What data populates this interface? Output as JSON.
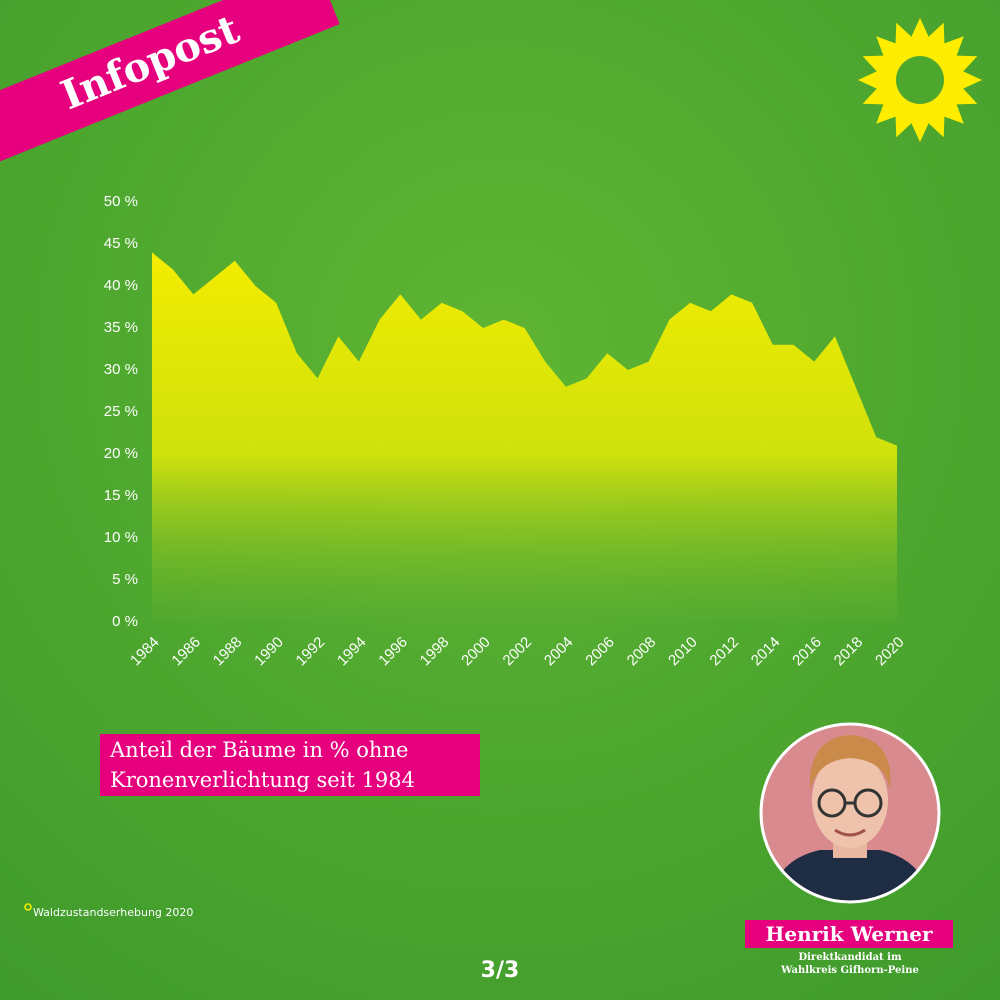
{
  "badge": "Infopost",
  "chart_data": {
    "type": "area",
    "title": "Anteil der Bäume in % ohne Kronenverlichtung seit 1984",
    "x": [
      1984,
      1985,
      1986,
      1987,
      1988,
      1989,
      1990,
      1991,
      1992,
      1993,
      1994,
      1995,
      1996,
      1997,
      1998,
      1999,
      2000,
      2001,
      2002,
      2003,
      2004,
      2005,
      2006,
      2007,
      2008,
      2009,
      2010,
      2011,
      2012,
      2013,
      2014,
      2015,
      2016,
      2017,
      2018,
      2019,
      2020
    ],
    "values": [
      44,
      42,
      39,
      41,
      43,
      40,
      38,
      32,
      29,
      34,
      31,
      36,
      39,
      36,
      38,
      37,
      35,
      36,
      35,
      31,
      28,
      29,
      32,
      30,
      31,
      36,
      38,
      37,
      39,
      38,
      33,
      33,
      31,
      34,
      28,
      22,
      21
    ],
    "xlim": [
      1984,
      2020
    ],
    "xticks": [
      1984,
      1986,
      1988,
      1990,
      1992,
      1994,
      1996,
      1998,
      2000,
      2002,
      2004,
      2006,
      2008,
      2010,
      2012,
      2014,
      2016,
      2018,
      2020
    ],
    "ylim": [
      0,
      50
    ],
    "yticks": [
      {
        "value": 0,
        "label": "0 %"
      },
      {
        "value": 5,
        "label": "5 %"
      },
      {
        "value": 10,
        "label": "10 %"
      },
      {
        "value": 15,
        "label": "15 %"
      },
      {
        "value": 20,
        "label": "20 %"
      },
      {
        "value": 25,
        "label": "25 %"
      },
      {
        "value": 30,
        "label": "30 %"
      },
      {
        "value": 35,
        "label": "35 %"
      },
      {
        "value": 40,
        "label": "40 %"
      },
      {
        "value": 45,
        "label": "45 %"
      },
      {
        "value": 50,
        "label": "50 %"
      }
    ],
    "color": "#f3ec00",
    "grid": false
  },
  "footnote": "Waldzustandserhebung 2020",
  "page": "3/3",
  "person": {
    "name": "Henrik Werner",
    "role": [
      "Direktkandidat im",
      "Wahlkreis Gifhorn-Peine"
    ]
  }
}
